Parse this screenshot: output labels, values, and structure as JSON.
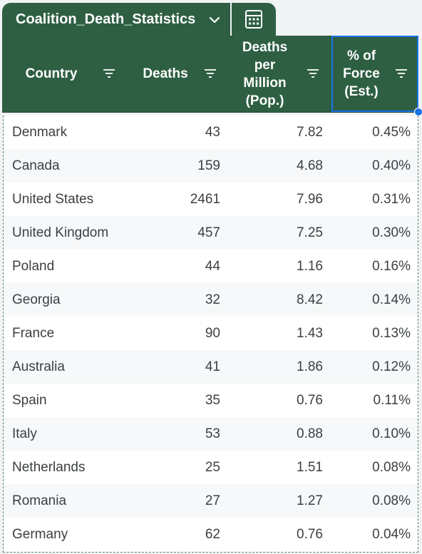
{
  "tab": {
    "title": "Coalition_Death_Statistics",
    "dropdown_icon": "chevron-down-icon",
    "calc_icon": "calculator-icon"
  },
  "colors": {
    "header_bg": "#2e5f43",
    "selection": "#1a73e8",
    "alt_row": "#f6f8f9"
  },
  "columns": [
    {
      "lines": [
        "Country"
      ],
      "filter_icon": "filter-icon"
    },
    {
      "lines": [
        "Deaths"
      ],
      "filter_icon": "filter-icon"
    },
    {
      "lines": [
        "Deaths",
        "per",
        "Million",
        "(Pop.)"
      ],
      "filter_icon": "filter-icon"
    },
    {
      "lines": [
        "% of",
        "Force",
        "(Est.)"
      ],
      "filter_icon": "filter-icon"
    }
  ],
  "rows": [
    {
      "country": "Denmark",
      "deaths": "43",
      "dpm": "7.82",
      "pct": "0.45%"
    },
    {
      "country": "Canada",
      "deaths": "159",
      "dpm": "4.68",
      "pct": "0.40%"
    },
    {
      "country": "United States",
      "deaths": "2461",
      "dpm": "7.96",
      "pct": "0.31%"
    },
    {
      "country": "United Kingdom",
      "deaths": "457",
      "dpm": "7.25",
      "pct": "0.30%"
    },
    {
      "country": "Poland",
      "deaths": "44",
      "dpm": "1.16",
      "pct": "0.16%"
    },
    {
      "country": "Georgia",
      "deaths": "32",
      "dpm": "8.42",
      "pct": "0.14%"
    },
    {
      "country": "France",
      "deaths": "90",
      "dpm": "1.43",
      "pct": "0.13%"
    },
    {
      "country": "Australia",
      "deaths": "41",
      "dpm": "1.86",
      "pct": "0.12%"
    },
    {
      "country": "Spain",
      "deaths": "35",
      "dpm": "0.76",
      "pct": "0.11%"
    },
    {
      "country": "Italy",
      "deaths": "53",
      "dpm": "0.88",
      "pct": "0.10%"
    },
    {
      "country": "Netherlands",
      "deaths": "25",
      "dpm": "1.51",
      "pct": "0.08%"
    },
    {
      "country": "Romania",
      "deaths": "27",
      "dpm": "1.27",
      "pct": "0.08%"
    },
    {
      "country": "Germany",
      "deaths": "62",
      "dpm": "0.76",
      "pct": "0.04%"
    }
  ]
}
